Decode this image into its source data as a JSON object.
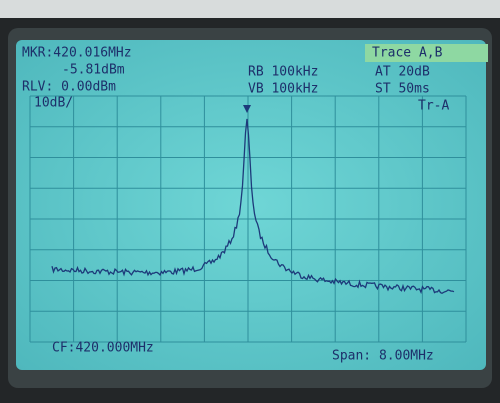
{
  "header": {
    "marker_freq": "MKR:420.016MHz",
    "marker_level": "-5.81dBm",
    "ref_level": "RLV: 0.00dBm",
    "rbw": "RB 100kHz",
    "vbw": "VB 100kHz",
    "attenuation": "AT 20dB",
    "sweep_time": "ST 50ms",
    "trace_mode": "Trace A,B"
  },
  "screen": {
    "scale": "10dB/",
    "trace_label": "Tr-A"
  },
  "footer": {
    "center_freq": "CF:420.000MHz",
    "span": "Span: 8.00MHz"
  }
}
